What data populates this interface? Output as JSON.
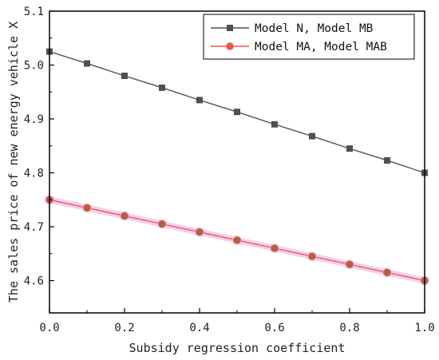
{
  "chart_data": {
    "type": "line",
    "title": "",
    "xlabel": "Subsidy regression coefficient",
    "ylabel": "The sales price of new energy vehicle X",
    "xlim": [
      0.0,
      1.0
    ],
    "ylim": [
      4.54,
      5.1
    ],
    "x_ticks": [
      0.0,
      0.2,
      0.4,
      0.6,
      0.8,
      1.0
    ],
    "x_tick_labels": [
      "0.0",
      "0.2",
      "0.4",
      "0.6",
      "0.8",
      "1.0"
    ],
    "y_ticks": [
      4.6,
      4.7,
      4.8,
      4.9,
      5.0,
      5.1
    ],
    "y_tick_labels": [
      "4.6",
      "4.7",
      "4.8",
      "4.9",
      "5.0",
      "5.1"
    ],
    "x": [
      0.0,
      0.1,
      0.2,
      0.3,
      0.4,
      0.5,
      0.6,
      0.7,
      0.8,
      0.9,
      1.0
    ],
    "grid": false,
    "legend_position": "top-right",
    "series": [
      {
        "name": "Model N, Model MB",
        "values": [
          5.025,
          5.003,
          4.98,
          4.958,
          4.935,
          4.913,
          4.89,
          4.868,
          4.845,
          4.823,
          4.8
        ],
        "color": "#505050",
        "marker": "square"
      },
      {
        "name": "Model MA, Model MAB",
        "values": [
          4.75,
          4.735,
          4.72,
          4.705,
          4.69,
          4.675,
          4.66,
          4.645,
          4.63,
          4.615,
          4.6
        ],
        "color": "#e8574a",
        "marker": "circle"
      }
    ]
  }
}
